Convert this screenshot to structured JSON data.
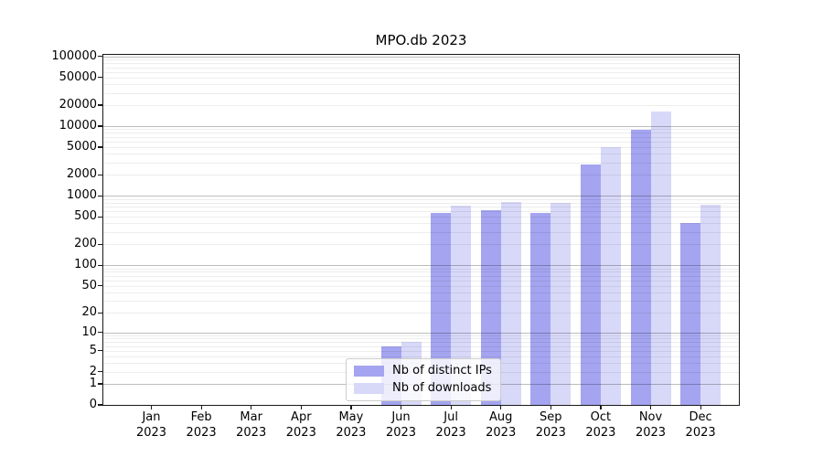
{
  "header": {
    "title": "MPO.db 2023"
  },
  "chart_data": {
    "type": "bar",
    "title": "MPO.db 2023",
    "categories": [
      "Jan",
      "Feb",
      "Mar",
      "Apr",
      "May",
      "Jun",
      "Jul",
      "Aug",
      "Sep",
      "Oct",
      "Nov",
      "Dec"
    ],
    "category_year": "2023",
    "series": [
      {
        "name": "Nb of distinct IPs",
        "color": "#a4a4f0",
        "values": [
          0,
          0,
          0,
          0,
          0,
          6,
          560,
          620,
          560,
          2800,
          8800,
          400
        ]
      },
      {
        "name": "Nb of downloads",
        "color": "#d8d8f8",
        "values": [
          0,
          0,
          0,
          0,
          0,
          7,
          720,
          815,
          800,
          5000,
          16000,
          740
        ]
      }
    ],
    "yscale": "symlog (pixel position = log10(value+1))",
    "ylim": [
      0,
      100000
    ],
    "y_tick_values": [
      100000,
      50000,
      20000,
      10000,
      5000,
      2000,
      1000,
      500,
      200,
      100,
      50,
      20,
      10,
      5,
      2,
      1,
      0
    ],
    "y_tick_labels": [
      "100000",
      "50000",
      "20000",
      "10000",
      "5000",
      "2000",
      "1000",
      "500",
      "200",
      "100",
      "50",
      "20",
      "10",
      "5",
      "2",
      "1",
      "0"
    ],
    "grid": true,
    "grid_major_at": [
      1,
      10,
      100,
      1000,
      10000,
      100000
    ],
    "legend_position": "lower center",
    "legend_labels": [
      "Nb of distinct IPs",
      "Nb of downloads"
    ]
  }
}
